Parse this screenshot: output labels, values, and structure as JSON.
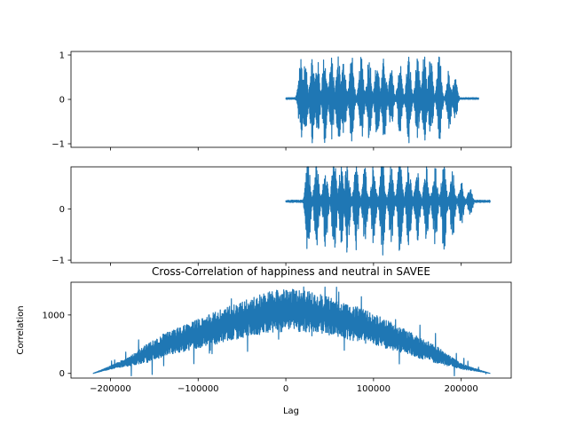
{
  "figure": {
    "background": "#ffffff"
  },
  "chart_data": [
    {
      "type": "line",
      "title": "",
      "xlabel": "",
      "ylabel": "",
      "series_color": "#1f77b4",
      "xlim": [
        -245000,
        257000
      ],
      "ylim": [
        -1.08,
        1.08
      ],
      "x_ticks": [
        -200000,
        -100000,
        0,
        100000,
        200000
      ],
      "y_ticks": [
        -1,
        0,
        1
      ],
      "y_tick_labels": [
        "−1",
        "0",
        "1"
      ],
      "x_tick_labels_visible": false,
      "signal": {
        "x_start": 0,
        "x_end": 220000,
        "baseline": 0.02,
        "bursts": [
          [
            17000,
            1.0
          ],
          [
            22000,
            0.8
          ],
          [
            30000,
            1.0
          ],
          [
            36000,
            0.9
          ],
          [
            44000,
            1.0
          ],
          [
            52000,
            0.95
          ],
          [
            60000,
            1.0
          ],
          [
            66000,
            0.9
          ],
          [
            75000,
            1.0
          ],
          [
            86000,
            0.95
          ],
          [
            95000,
            1.0
          ],
          [
            104000,
            0.9
          ],
          [
            112000,
            0.95
          ],
          [
            120000,
            0.7
          ],
          [
            130000,
            0.85
          ],
          [
            140000,
            1.0
          ],
          [
            150000,
            0.9
          ],
          [
            158000,
            1.0
          ],
          [
            165000,
            0.95
          ],
          [
            175000,
            1.0
          ],
          [
            186000,
            0.7
          ],
          [
            193000,
            0.5
          ]
        ]
      }
    },
    {
      "type": "line",
      "title": "",
      "xlabel": "",
      "ylabel": "",
      "series_color": "#1f77b4",
      "xlim": [
        -245000,
        257000
      ],
      "ylim": [
        -1.05,
        0.82
      ],
      "x_ticks": [
        -200000,
        -100000,
        0,
        100000,
        200000
      ],
      "y_ticks": [
        -1,
        0
      ],
      "y_tick_labels": [
        "−1",
        "0"
      ],
      "x_tick_labels_visible": false,
      "signal": {
        "x_start": 0,
        "x_end": 233000,
        "baseline": 0.15,
        "bursts": [
          [
            25000,
            0.9
          ],
          [
            35000,
            0.8
          ],
          [
            45000,
            0.75
          ],
          [
            55000,
            0.9
          ],
          [
            63000,
            0.7
          ],
          [
            70000,
            0.85
          ],
          [
            80000,
            0.8
          ],
          [
            90000,
            0.7
          ],
          [
            100000,
            0.75
          ],
          [
            110000,
            0.85
          ],
          [
            120000,
            0.7
          ],
          [
            130000,
            0.9
          ],
          [
            140000,
            0.8
          ],
          [
            150000,
            0.65
          ],
          [
            160000,
            0.7
          ],
          [
            170000,
            0.75
          ],
          [
            180000,
            0.8
          ],
          [
            190000,
            0.6
          ],
          [
            200000,
            0.4
          ],
          [
            210000,
            0.25
          ]
        ]
      }
    },
    {
      "type": "line",
      "title": "Cross-Correlation of happiness and neutral in SAVEE",
      "xlabel": "Lag",
      "ylabel": "Correlation",
      "series_color": "#1f77b4",
      "xlim": [
        -245000,
        257000
      ],
      "ylim": [
        -80,
        1560
      ],
      "x_ticks": [
        -200000,
        -100000,
        0,
        100000,
        200000
      ],
      "x_tick_labels": [
        "−200000",
        "−100000",
        "0",
        "100000",
        "200000"
      ],
      "y_ticks": [
        0,
        1000
      ],
      "y_tick_labels": [
        "0",
        "1000"
      ],
      "x_tick_labels_visible": true,
      "envelope": {
        "lag_range": [
          -220000,
          233000
        ],
        "points": [
          [
            -220000,
            0
          ],
          [
            -180000,
            200
          ],
          [
            -160000,
            330
          ],
          [
            -140000,
            480
          ],
          [
            -100000,
            680
          ],
          [
            -60000,
            880
          ],
          [
            -20000,
            1050
          ],
          [
            0,
            1080
          ],
          [
            20000,
            1070
          ],
          [
            50000,
            980
          ],
          [
            80000,
            850
          ],
          [
            110000,
            700
          ],
          [
            140000,
            520
          ],
          [
            170000,
            330
          ],
          [
            200000,
            120
          ],
          [
            233000,
            0
          ]
        ],
        "peak_max": 1480,
        "trough_min": -40
      }
    }
  ]
}
